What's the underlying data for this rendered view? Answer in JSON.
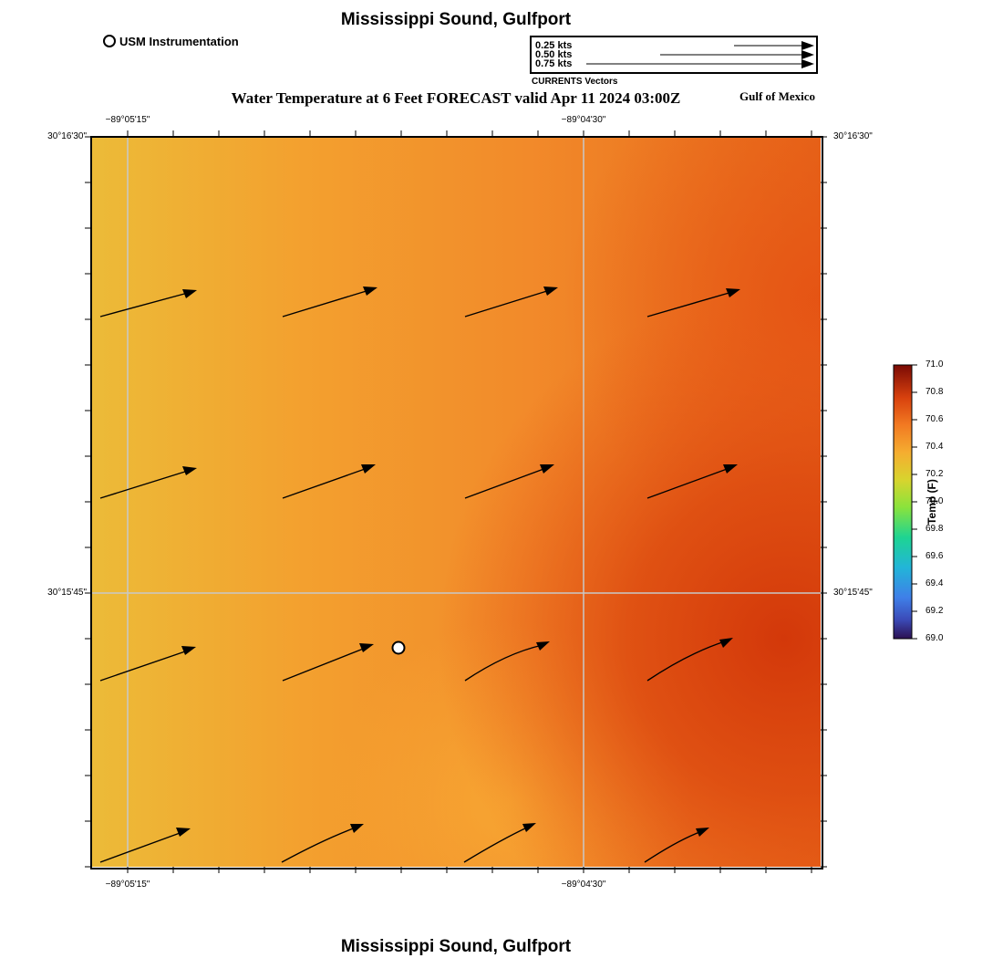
{
  "title": "Mississippi Sound, Gulfport",
  "legend": {
    "station_label": "USM Instrumentation"
  },
  "vector_legend": {
    "labels": [
      "0.25 kts",
      "0.50 kts",
      "0.75 kts"
    ],
    "speeds": [
      0.25,
      0.5,
      0.75
    ],
    "caption": "CURRENTS Vectors"
  },
  "subtitle": "Water Temperature at 6 Feet FORECAST valid Apr 11 2024 03:00Z",
  "region": "Gulf of Mexico",
  "axes": {
    "lon_labels": [
      "−89°05'15\"",
      "−89°04'30\""
    ],
    "lat_labels": [
      "30°16'30\"",
      "30°15'45\""
    ]
  },
  "colorbar": {
    "title": "Temp (F)",
    "ticks": [
      "71.0",
      "70.8",
      "70.6",
      "70.4",
      "70.2",
      "70.0",
      "69.8",
      "69.6",
      "69.4",
      "69.2",
      "69.0"
    ],
    "min": 69.0,
    "max": 71.0
  },
  "colors": {
    "warm_light": "#ecbb38",
    "warm_mid": "#f28c2c",
    "warm_dark": "#d6420c",
    "grid": "#c8c8c8"
  }
}
